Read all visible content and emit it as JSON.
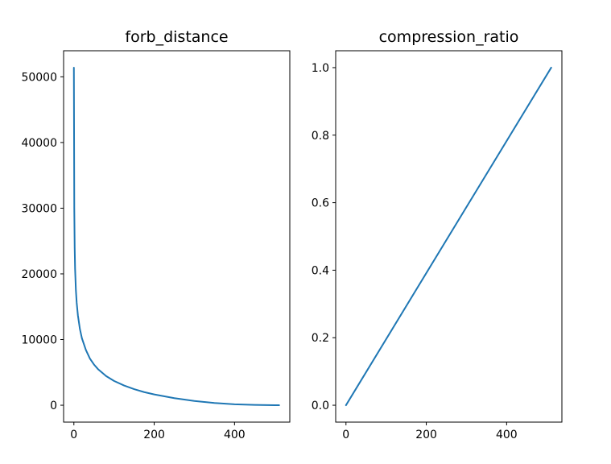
{
  "figure": {
    "background": "#ffffff"
  },
  "chart_data": [
    {
      "type": "line",
      "title": "forb_distance",
      "xlabel": "",
      "ylabel": "",
      "xlim": [
        -25.6,
        537.6
      ],
      "ylim": [
        -2570,
        53970
      ],
      "xticks": [
        0,
        200,
        400
      ],
      "xtick_labels": [
        "0",
        "200",
        "400"
      ],
      "yticks": [
        0,
        10000,
        20000,
        30000,
        40000,
        50000
      ],
      "ytick_labels": [
        "0",
        "10000",
        "20000",
        "30000",
        "40000",
        "50000"
      ],
      "grid": false,
      "color": "#1f77b4",
      "series": [
        {
          "x": [
            0,
            1,
            2,
            3,
            5,
            7,
            10,
            15,
            20,
            30,
            40,
            50,
            60,
            80,
            100,
            125,
            150,
            175,
            200,
            250,
            300,
            350,
            400,
            450,
            500,
            511
          ],
          "y": [
            51400,
            30000,
            24000,
            20800,
            17500,
            15600,
            13700,
            11600,
            10200,
            8400,
            7100,
            6200,
            5500,
            4450,
            3700,
            3000,
            2450,
            2000,
            1650,
            1080,
            650,
            340,
            150,
            50,
            8,
            0
          ]
        }
      ]
    },
    {
      "type": "line",
      "title": "compression_ratio",
      "xlabel": "",
      "ylabel": "",
      "xlim": [
        -25.6,
        537.6
      ],
      "ylim": [
        -0.05,
        1.05
      ],
      "xticks": [
        0,
        200,
        400
      ],
      "xtick_labels": [
        "0",
        "200",
        "400"
      ],
      "yticks": [
        0,
        0.2,
        0.4,
        0.6,
        0.8,
        1.0
      ],
      "ytick_labels": [
        "0.0",
        "0.2",
        "0.4",
        "0.6",
        "0.8",
        "1.0"
      ],
      "grid": false,
      "color": "#1f77b4",
      "series": [
        {
          "x": [
            0,
            511
          ],
          "y": [
            0.0,
            1.0
          ]
        }
      ]
    }
  ]
}
